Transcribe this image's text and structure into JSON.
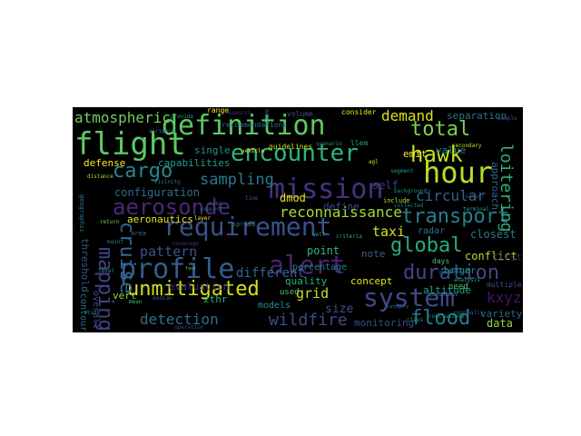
{
  "wordcloud": {
    "background": "#000000",
    "words": [
      {
        "text": "flight",
        "color": "#5ec962"
      },
      {
        "text": "definition",
        "color": "#5ec962"
      },
      {
        "text": "encounter",
        "color": "#2fb47c"
      },
      {
        "text": "mission",
        "color": "#46327e"
      },
      {
        "text": "requirement",
        "color": "#3b528b"
      },
      {
        "text": "profile",
        "color": "#365c8d"
      },
      {
        "text": "alert",
        "color": "#482475"
      },
      {
        "text": "system",
        "color": "#3e4989"
      },
      {
        "text": "hour",
        "color": "#b5de2b"
      },
      {
        "text": "hawk",
        "color": "#c2df23"
      },
      {
        "text": "total",
        "color": "#7ad151"
      },
      {
        "text": "cargo",
        "color": "#24868e"
      },
      {
        "text": "transport",
        "color": "#277f8e"
      },
      {
        "text": "aerosonde",
        "color": "#482878"
      },
      {
        "text": "global",
        "color": "#25ac82"
      },
      {
        "text": "duration",
        "color": "#3f4788"
      },
      {
        "text": "unmitigated",
        "color": "#d2e21b"
      },
      {
        "text": "flood",
        "color": "#287c8e"
      },
      {
        "text": "mapping",
        "color": "#414487"
      },
      {
        "text": "cruise",
        "color": "#31688e"
      },
      {
        "text": "atmospheric",
        "color": "#6ece58"
      },
      {
        "text": "sampling",
        "color": "#2a788e"
      },
      {
        "text": "reconnaissance",
        "color": "#a8db34"
      },
      {
        "text": "wildfire",
        "color": "#3e4c8a"
      },
      {
        "text": "detection",
        "color": "#2d708e"
      },
      {
        "text": "circular",
        "color": "#33638d"
      },
      {
        "text": "loitering",
        "color": "#2db27d"
      },
      {
        "text": "demand",
        "color": "#d8e219"
      },
      {
        "text": "pattern",
        "color": "#3a538b"
      },
      {
        "text": "taxi",
        "color": "#d2e21b"
      },
      {
        "text": "grid",
        "color": "#c8e020"
      },
      {
        "text": "kxyz",
        "color": "#471365"
      },
      {
        "text": "configuration",
        "color": "#2c728e"
      },
      {
        "text": "different",
        "color": "#32658e"
      },
      {
        "text": "capabilities",
        "color": "#1fa088"
      },
      {
        "text": "separation",
        "color": "#2d708e"
      },
      {
        "text": "aeronautics",
        "color": "#e5e419"
      },
      {
        "text": "size",
        "color": "#3b528b"
      },
      {
        "text": "evaluation",
        "color": "#472d7b"
      },
      {
        "text": "dmod",
        "color": "#eae51a"
      },
      {
        "text": "quality",
        "color": "#2ab07f"
      },
      {
        "text": "concept",
        "color": "#dde318"
      },
      {
        "text": "monitoring",
        "color": "#3d4e8a"
      },
      {
        "text": "altitude",
        "color": "#20a386"
      },
      {
        "text": "closest",
        "color": "#2a788e"
      },
      {
        "text": "conflict",
        "color": "#b0dd2f"
      },
      {
        "text": "data",
        "color": "#93d741"
      },
      {
        "text": "variety",
        "color": "#30698e"
      },
      {
        "text": "approach",
        "color": "#33638d"
      },
      {
        "text": "point",
        "color": "#35b779"
      },
      {
        "text": "note",
        "color": "#365d8d"
      },
      {
        "text": "self",
        "color": "#443983"
      },
      {
        "text": "radar",
        "color": "#2c728e"
      },
      {
        "text": "zthr",
        "color": "#29af7f"
      },
      {
        "text": "defense",
        "color": "#fde725"
      },
      {
        "text": "single",
        "color": "#21918c"
      },
      {
        "text": "threshold",
        "color": "#375a8c"
      },
      {
        "text": "overall",
        "color": "#3e4a89"
      },
      {
        "text": "percentage",
        "color": "#25848e"
      },
      {
        "text": "value",
        "color": "#26828e"
      },
      {
        "text": "define",
        "color": "#3d4d8a"
      },
      {
        "text": "first",
        "color": "#481f70"
      },
      {
        "text": "vert",
        "color": "#95d840"
      },
      {
        "text": "models",
        "color": "#21918c"
      },
      {
        "text": "contour",
        "color": "#2d718e"
      },
      {
        "text": "larger",
        "color": "#1f968b"
      },
      {
        "text": "emit",
        "color": "#fde725"
      },
      {
        "text": "geographic",
        "color": "#2a768e"
      },
      {
        "text": "multiple",
        "color": "#3b528b"
      },
      {
        "text": "need",
        "color": "#4ac16d"
      },
      {
        "text": "used",
        "color": "#56c667"
      },
      {
        "text": "days",
        "color": "#4ec36b"
      },
      {
        "text": "consider",
        "color": "#f1e51d"
      },
      {
        "text": "recommendations",
        "color": "#2e6f8e"
      },
      {
        "text": "guidelines",
        "color": "#d0e11c"
      },
      {
        "text": "range",
        "color": "#fde725"
      },
      {
        "text": "volume",
        "color": "#3b528b"
      },
      {
        "text": "llem",
        "color": "#20a386"
      },
      {
        "text": "aces",
        "color": "#31688e"
      },
      {
        "text": "include",
        "color": "#b8de29"
      },
      {
        "text": "collected",
        "color": "#277f8e"
      },
      {
        "text": "background",
        "color": "#21918c"
      },
      {
        "text": "area",
        "color": "#2c728e"
      },
      {
        "text": "analysis",
        "color": "#20a486"
      },
      {
        "text": "secondary",
        "color": "#b5de2b"
      },
      {
        "text": "return",
        "color": "#73d056"
      },
      {
        "text": "spread",
        "color": "#2a788e"
      },
      {
        "text": "median",
        "color": "#3b528b"
      },
      {
        "text": "mean",
        "color": "#44bf70"
      },
      {
        "text": "layer",
        "color": "#fde725"
      },
      {
        "text": "nominally",
        "color": "#35608d"
      },
      {
        "text": "airspace",
        "color": "#2e6e8e"
      },
      {
        "text": "provide",
        "color": "#1e9b8a"
      },
      {
        "text": "sample",
        "color": "#3c4f8a"
      },
      {
        "text": "maint",
        "color": "#26828e"
      },
      {
        "text": "distance",
        "color": "#9fda3a"
      },
      {
        "text": "vicinity",
        "color": "#25858e"
      },
      {
        "text": "research",
        "color": "#46307e"
      },
      {
        "text": "questions",
        "color": "#2c728e"
      },
      {
        "text": "criteria",
        "color": "#28ae80"
      },
      {
        "text": "conclusions",
        "color": "#1fa088"
      },
      {
        "text": "operation",
        "color": "#3f4889"
      },
      {
        "text": "category",
        "color": "#2c738e"
      },
      {
        "text": "scenario",
        "color": "#1f9a8a"
      },
      {
        "text": "terminal",
        "color": "#22a785"
      },
      {
        "text": "vehicle",
        "color": "#fbe723"
      },
      {
        "text": "time",
        "color": "#3e4989"
      },
      {
        "text": "case",
        "color": "#31688e"
      },
      {
        "text": "study",
        "color": "#2d708e"
      },
      {
        "text": "well",
        "color": "#22a884"
      },
      {
        "text": "segment",
        "color": "#1e9c89"
      },
      {
        "text": "sensor",
        "color": "#3b518b"
      },
      {
        "text": "fast",
        "color": "#5ec962"
      },
      {
        "text": "performance",
        "color": "#2b758e"
      },
      {
        "text": "agl",
        "color": "#d5e21a"
      },
      {
        "text": "coverage",
        "color": "#46337f"
      },
      {
        "text": "support",
        "color": "#33638d"
      },
      {
        "text": "class",
        "color": "#1fa187"
      },
      {
        "text": "level",
        "color": "#228d8d"
      }
    ]
  }
}
